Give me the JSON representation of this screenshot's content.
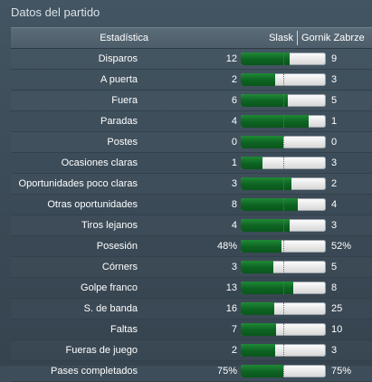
{
  "title": "Datos del partido",
  "header": {
    "stat": "Estadística",
    "home": "Slask",
    "away": "Gornik Zabrze"
  },
  "colors": {
    "home_bar": "#0d6322",
    "away_bar": "#e6e6e6"
  },
  "stats": [
    {
      "label": "Disparos",
      "home": "12",
      "away": "9",
      "home_share": 0.57
    },
    {
      "label": "A puerta",
      "home": "2",
      "away": "3",
      "home_share": 0.4
    },
    {
      "label": "Fuera",
      "home": "6",
      "away": "5",
      "home_share": 0.55
    },
    {
      "label": "Paradas",
      "home": "4",
      "away": "1",
      "home_share": 0.8
    },
    {
      "label": "Postes",
      "home": "0",
      "away": "0",
      "home_share": 0.5
    },
    {
      "label": "Ocasiones claras",
      "home": "1",
      "away": "3",
      "home_share": 0.25
    },
    {
      "label": "Oportunidades poco claras",
      "home": "3",
      "away": "2",
      "home_share": 0.6
    },
    {
      "label": "Otras oportunidades",
      "home": "8",
      "away": "4",
      "home_share": 0.67
    },
    {
      "label": "Tiros lejanos",
      "home": "4",
      "away": "3",
      "home_share": 0.57
    },
    {
      "label": "Posesión",
      "home": "48%",
      "away": "52%",
      "home_share": 0.48
    },
    {
      "label": "Córners",
      "home": "3",
      "away": "5",
      "home_share": 0.38
    },
    {
      "label": "Golpe franco",
      "home": "13",
      "away": "8",
      "home_share": 0.62
    },
    {
      "label": "S. de banda",
      "home": "16",
      "away": "25",
      "home_share": 0.39
    },
    {
      "label": "Faltas",
      "home": "7",
      "away": "10",
      "home_share": 0.41
    },
    {
      "label": "Fueras de juego",
      "home": "2",
      "away": "3",
      "home_share": 0.4
    },
    {
      "label": "Pases completados",
      "home": "75%",
      "away": "75%",
      "home_share": 0.5
    }
  ]
}
